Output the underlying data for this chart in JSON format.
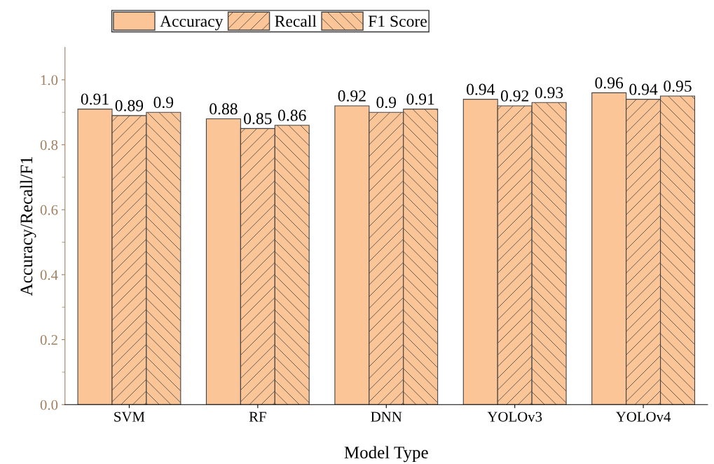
{
  "chart_data": {
    "type": "bar",
    "xlabel": "Model Type",
    "ylabel": "Accuracy/Recall/F1",
    "categories": [
      "SVM",
      "RF",
      "DNN",
      "YOLOv3",
      "YOLOv4"
    ],
    "series": [
      {
        "name": "Accuracy",
        "color": "#fbc597",
        "values": [
          0.91,
          0.88,
          0.92,
          0.94,
          0.96
        ]
      },
      {
        "name": "Recall",
        "color": "#fbc597",
        "values": [
          0.89,
          0.85,
          0.9,
          0.92,
          0.94
        ]
      },
      {
        "name": "F1 Score",
        "color": "#fbc597",
        "values": [
          0.9,
          0.86,
          0.91,
          0.93,
          0.95
        ]
      }
    ],
    "ylim": [
      0,
      1.1
    ],
    "yticks": [
      {
        "value": 0,
        "label": "0.0"
      },
      0.2,
      0.4,
      0.6,
      0.8,
      {
        "value": 1,
        "label": "1.0"
      }
    ],
    "data_labels": true,
    "grid": false,
    "legend": "top"
  }
}
